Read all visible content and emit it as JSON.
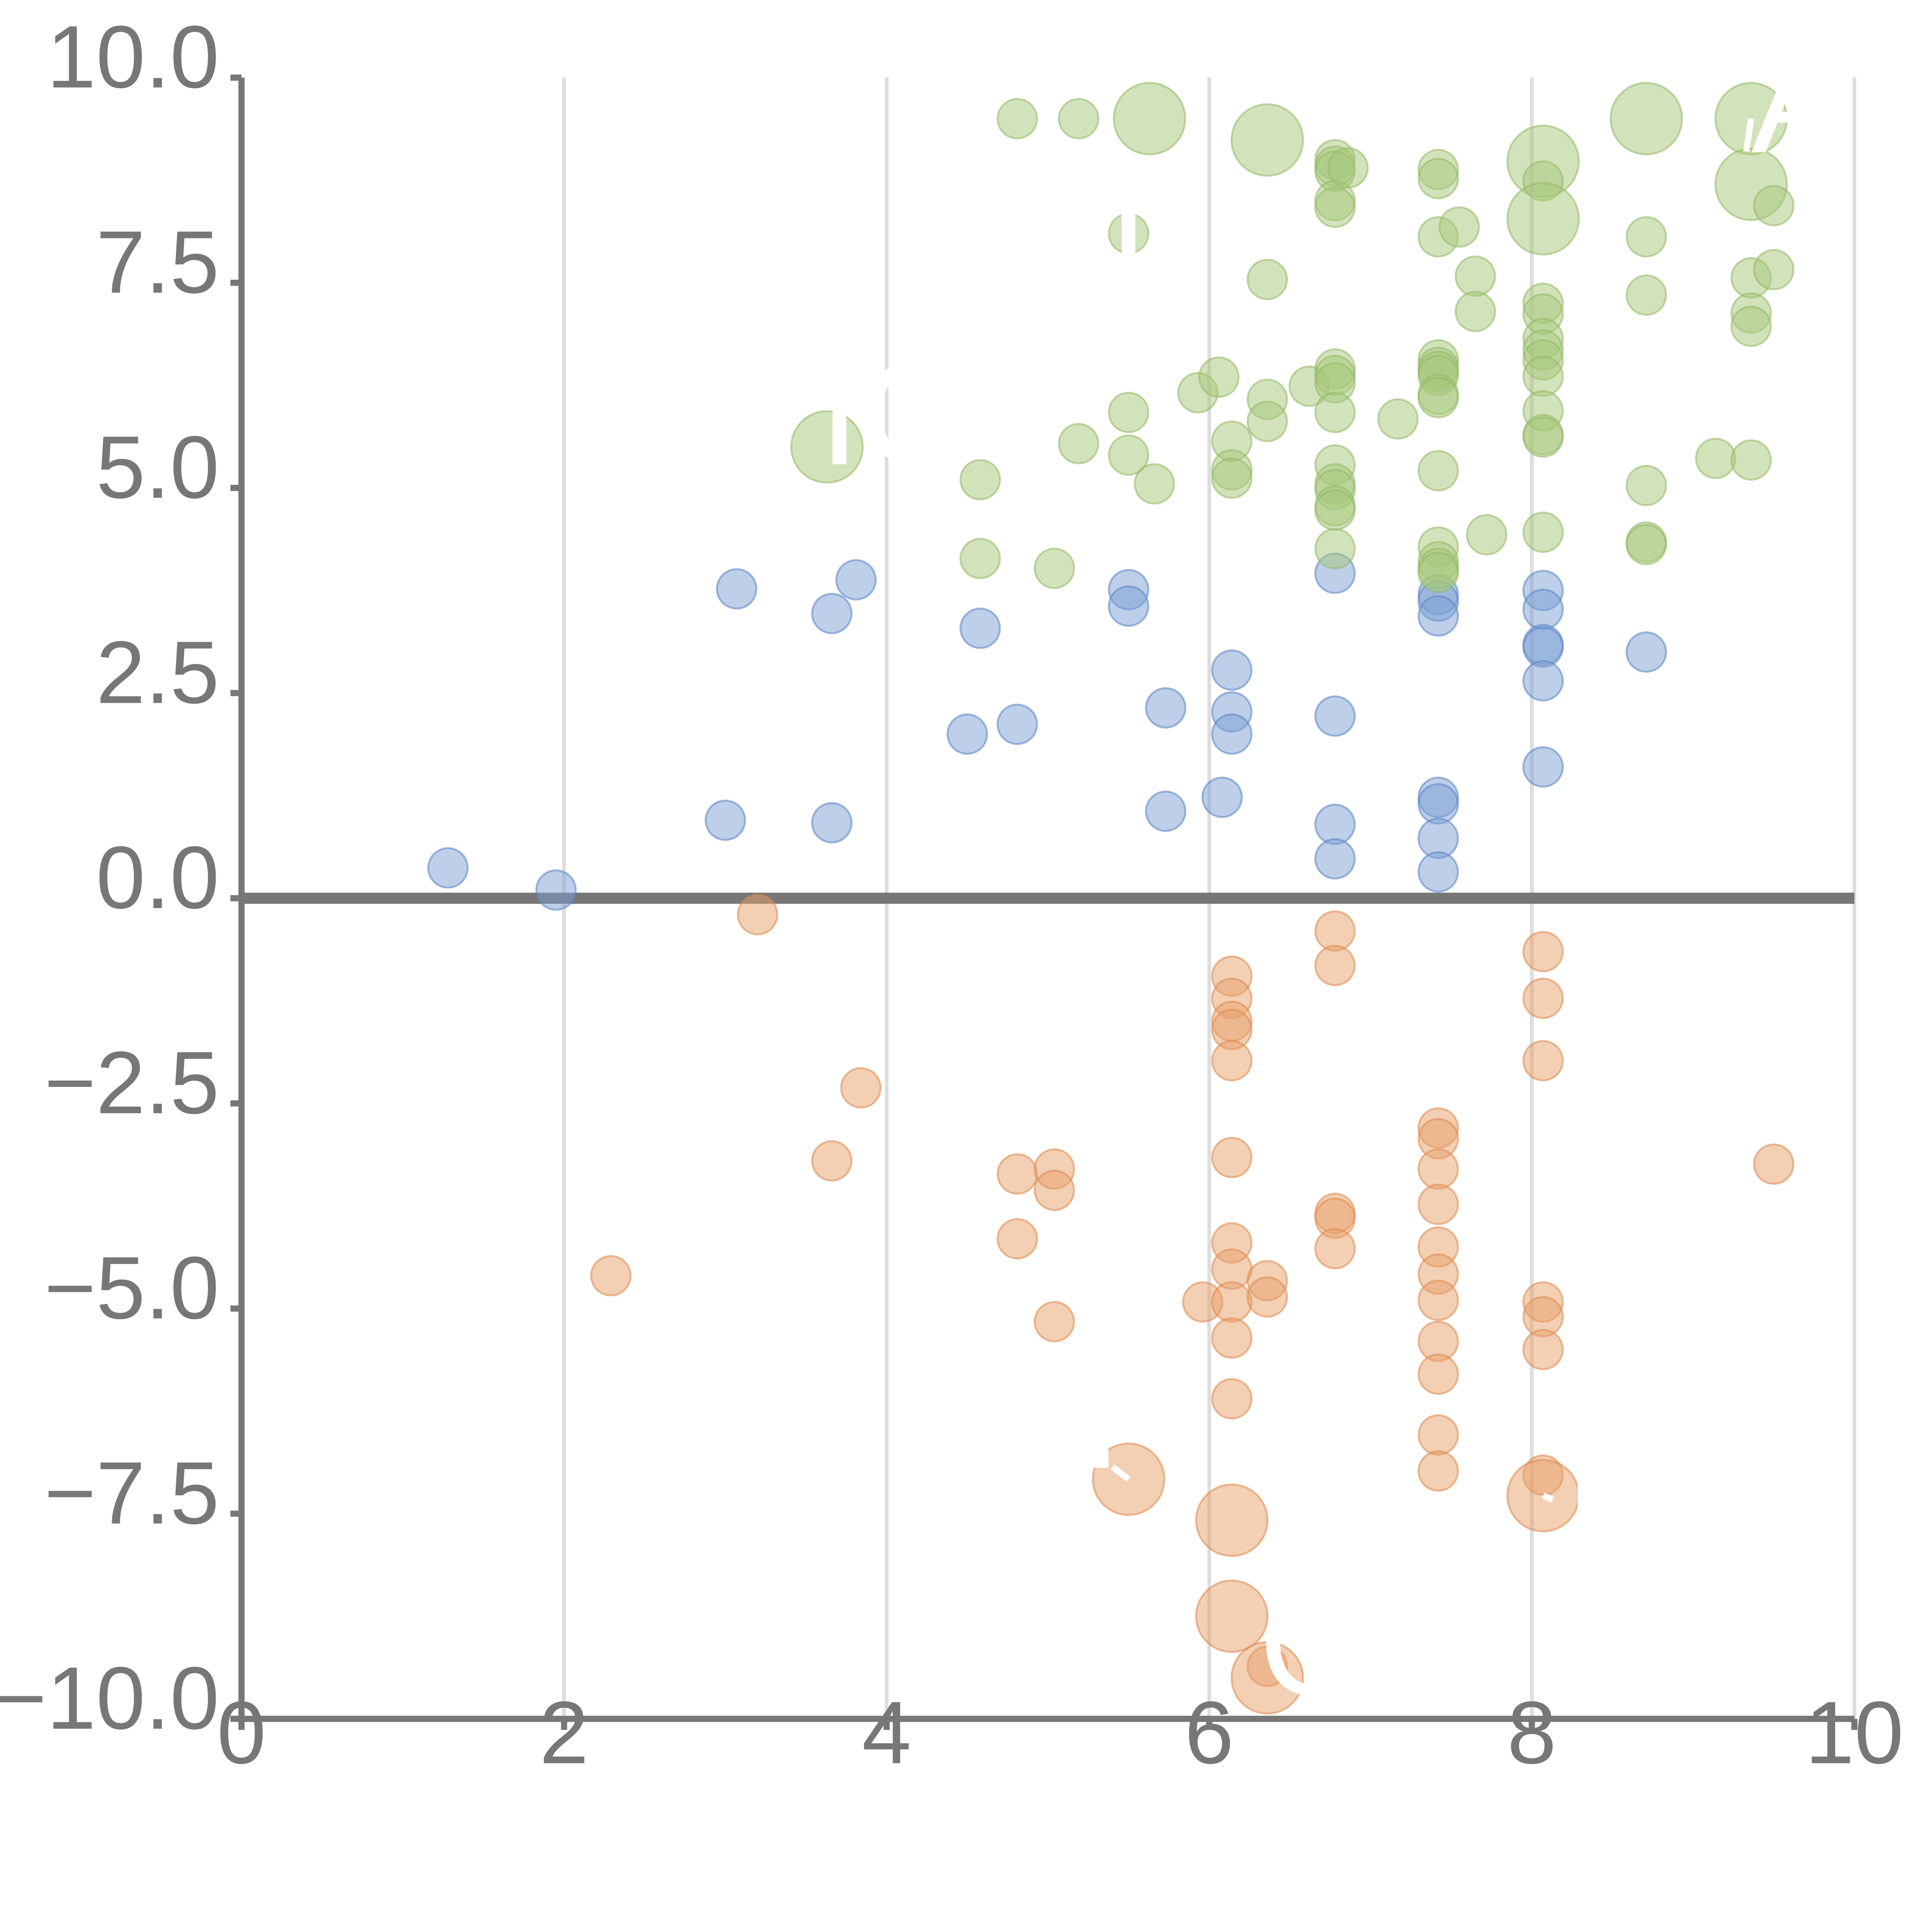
{
  "chart_data": {
    "type": "scatter",
    "title": "",
    "xlabel": "",
    "ylabel": "",
    "xlim": [
      0,
      10
    ],
    "ylim": [
      -10,
      10
    ],
    "x_ticks": [
      0,
      2,
      4,
      6,
      8,
      10
    ],
    "y_ticks": [
      -10,
      -7.5,
      -5,
      -2.5,
      0,
      2.5,
      5,
      7.5,
      10
    ],
    "x_tick_labels": [
      "0",
      "2",
      "4",
      "6",
      "8",
      "10"
    ],
    "y_tick_labels": [
      "−10.0",
      "−7.5",
      "−5.0",
      "−2.5",
      "0.0",
      "2.5",
      "5.0",
      "7.5",
      "10.0"
    ],
    "vertical_grid": true,
    "zero_line": 0,
    "colors": {
      "blue_fill": "#7b9fd3",
      "blue_stroke": "#5b84c4",
      "green_fill": "#a6c77a",
      "green_stroke": "#93b866",
      "orange_fill": "#e8a06a",
      "orange_stroke": "#dc8a4e"
    },
    "series": [
      {
        "name": "blue",
        "color": "#7b9fd3",
        "points": [
          [
            1.28,
            0.37,
            1
          ],
          [
            1.95,
            0.1,
            1
          ],
          [
            3.0,
            0.95,
            1
          ],
          [
            3.07,
            3.77,
            1
          ],
          [
            3.66,
            0.92,
            1
          ],
          [
            3.66,
            3.47,
            1
          ],
          [
            3.81,
            3.88,
            1
          ],
          [
            4.5,
            2.0,
            1
          ],
          [
            4.58,
            3.29,
            1
          ],
          [
            4.81,
            2.12,
            1
          ],
          [
            5.5,
            3.76,
            1
          ],
          [
            5.5,
            3.56,
            1
          ],
          [
            5.73,
            2.32,
            1
          ],
          [
            5.73,
            1.06,
            1
          ],
          [
            6.08,
            1.23,
            1
          ],
          [
            6.14,
            2.78,
            1
          ],
          [
            6.14,
            2.27,
            1
          ],
          [
            6.14,
            2.0,
            1
          ],
          [
            6.78,
            3.96,
            1
          ],
          [
            6.78,
            2.22,
            1
          ],
          [
            6.78,
            0.9,
            1
          ],
          [
            6.78,
            0.48,
            1
          ],
          [
            7.42,
            3.7,
            1
          ],
          [
            7.42,
            3.62,
            1
          ],
          [
            7.42,
            3.44,
            1
          ],
          [
            7.42,
            1.23,
            1
          ],
          [
            7.42,
            1.15,
            1
          ],
          [
            7.42,
            0.73,
            1
          ],
          [
            7.42,
            0.32,
            1
          ],
          [
            8.07,
            3.75,
            1
          ],
          [
            8.07,
            3.52,
            1
          ],
          [
            8.07,
            3.09,
            1
          ],
          [
            8.07,
            3.06,
            1
          ],
          [
            8.07,
            2.65,
            1
          ],
          [
            8.07,
            1.6,
            1
          ],
          [
            8.71,
            3.0,
            1
          ]
        ]
      },
      {
        "name": "orange",
        "color": "#e8a06a",
        "points": [
          [
            3.2,
            -0.2,
            1
          ],
          [
            2.29,
            -4.6,
            1
          ],
          [
            3.66,
            -3.2,
            1
          ],
          [
            3.84,
            -2.31,
            1
          ],
          [
            4.81,
            -3.36,
            1
          ],
          [
            4.81,
            -4.15,
            1
          ],
          [
            5.04,
            -3.3,
            1
          ],
          [
            5.04,
            -3.56,
            1
          ],
          [
            5.04,
            -5.16,
            1
          ],
          [
            5.5,
            -7.08,
            3
          ],
          [
            5.96,
            -4.92,
            1
          ],
          [
            6.14,
            -0.95,
            1
          ],
          [
            6.14,
            -1.22,
            1
          ],
          [
            6.14,
            -1.5,
            1
          ],
          [
            6.14,
            -1.6,
            1
          ],
          [
            6.14,
            -1.98,
            1
          ],
          [
            6.14,
            -3.16,
            1
          ],
          [
            6.14,
            -4.2,
            1
          ],
          [
            6.14,
            -4.52,
            1
          ],
          [
            6.14,
            -4.92,
            1
          ],
          [
            6.14,
            -5.36,
            1
          ],
          [
            6.14,
            -6.1,
            1
          ],
          [
            6.14,
            -7.58,
            3
          ],
          [
            6.14,
            -8.75,
            3
          ],
          [
            6.36,
            -4.66,
            1
          ],
          [
            6.36,
            -4.86,
            1
          ],
          [
            6.36,
            -9.36,
            1
          ],
          [
            6.36,
            -9.5,
            3
          ],
          [
            6.78,
            -0.4,
            1
          ],
          [
            6.78,
            -0.82,
            1
          ],
          [
            6.78,
            -3.84,
            1
          ],
          [
            6.78,
            -3.9,
            1
          ],
          [
            6.78,
            -4.27,
            1
          ],
          [
            7.42,
            -2.8,
            1
          ],
          [
            7.42,
            -2.93,
            1
          ],
          [
            7.42,
            -3.3,
            1
          ],
          [
            7.42,
            -3.73,
            1
          ],
          [
            7.42,
            -4.25,
            1
          ],
          [
            7.42,
            -4.58,
            1
          ],
          [
            7.42,
            -4.9,
            1
          ],
          [
            7.42,
            -5.4,
            1
          ],
          [
            7.42,
            -5.8,
            1
          ],
          [
            7.42,
            -6.54,
            1
          ],
          [
            7.42,
            -6.98,
            1
          ],
          [
            8.07,
            -0.65,
            1
          ],
          [
            8.07,
            -1.22,
            1
          ],
          [
            8.07,
            -1.98,
            1
          ],
          [
            8.07,
            -4.92,
            1
          ],
          [
            8.07,
            -5.1,
            1
          ],
          [
            8.07,
            -5.5,
            1
          ],
          [
            8.07,
            -7.03,
            1
          ],
          [
            8.07,
            -7.28,
            3
          ],
          [
            9.5,
            -3.24,
            1
          ]
        ]
      },
      {
        "name": "green",
        "color": "#a6c77a",
        "points": [
          [
            3.63,
            5.5,
            3
          ],
          [
            4.58,
            4.14,
            1
          ],
          [
            4.58,
            5.1,
            1
          ],
          [
            4.81,
            9.5,
            1
          ],
          [
            5.04,
            4.02,
            1
          ],
          [
            5.19,
            9.5,
            1
          ],
          [
            5.19,
            5.54,
            1
          ],
          [
            5.5,
            5.92,
            1
          ],
          [
            5.5,
            5.4,
            1
          ],
          [
            5.5,
            8.1,
            1
          ],
          [
            5.63,
            9.5,
            3
          ],
          [
            5.66,
            5.05,
            1
          ],
          [
            5.93,
            6.16,
            1
          ],
          [
            6.06,
            6.35,
            1
          ],
          [
            6.14,
            5.57,
            1
          ],
          [
            6.14,
            5.22,
            1
          ],
          [
            6.14,
            5.12,
            1
          ],
          [
            6.36,
            9.24,
            3
          ],
          [
            6.36,
            7.54,
            1
          ],
          [
            6.36,
            6.08,
            1
          ],
          [
            6.36,
            5.81,
            1
          ],
          [
            6.62,
            6.24,
            1
          ],
          [
            6.78,
            9.0,
            1
          ],
          [
            6.78,
            8.92,
            1
          ],
          [
            6.78,
            8.86,
            1
          ],
          [
            6.78,
            8.5,
            1
          ],
          [
            6.78,
            8.42,
            1
          ],
          [
            6.78,
            6.45,
            1
          ],
          [
            6.78,
            6.37,
            1
          ],
          [
            6.78,
            6.28,
            1
          ],
          [
            6.78,
            5.92,
            1
          ],
          [
            6.78,
            5.28,
            1
          ],
          [
            6.78,
            5.05,
            1
          ],
          [
            6.78,
            4.98,
            1
          ],
          [
            6.78,
            4.78,
            1
          ],
          [
            6.78,
            4.73,
            1
          ],
          [
            6.78,
            4.26,
            1
          ],
          [
            6.86,
            8.9,
            1
          ],
          [
            7.17,
            5.84,
            1
          ],
          [
            7.42,
            8.88,
            1
          ],
          [
            7.42,
            8.77,
            1
          ],
          [
            7.42,
            8.06,
            1
          ],
          [
            7.42,
            6.56,
            1
          ],
          [
            7.42,
            6.47,
            1
          ],
          [
            7.42,
            6.42,
            1
          ],
          [
            7.42,
            6.37,
            1
          ],
          [
            7.42,
            6.14,
            1
          ],
          [
            7.42,
            6.1,
            1
          ],
          [
            7.42,
            5.21,
            1
          ],
          [
            7.42,
            4.28,
            1
          ],
          [
            7.42,
            4.1,
            1
          ],
          [
            7.42,
            4.02,
            1
          ],
          [
            7.42,
            3.97,
            1
          ],
          [
            7.55,
            8.18,
            1
          ],
          [
            7.65,
            7.58,
            1
          ],
          [
            7.65,
            7.15,
            1
          ],
          [
            7.72,
            4.43,
            1
          ],
          [
            8.07,
            8.98,
            3
          ],
          [
            8.07,
            8.74,
            1
          ],
          [
            8.07,
            8.28,
            3
          ],
          [
            8.07,
            7.25,
            1
          ],
          [
            8.07,
            7.12,
            1
          ],
          [
            8.07,
            6.82,
            1
          ],
          [
            8.07,
            6.68,
            1
          ],
          [
            8.07,
            6.56,
            1
          ],
          [
            8.07,
            6.36,
            1
          ],
          [
            8.07,
            5.94,
            1
          ],
          [
            8.07,
            5.65,
            1
          ],
          [
            8.07,
            5.62,
            1
          ],
          [
            8.07,
            4.46,
            1
          ],
          [
            8.71,
            9.5,
            3
          ],
          [
            8.71,
            8.06,
            1
          ],
          [
            8.71,
            7.35,
            1
          ],
          [
            8.71,
            5.03,
            1
          ],
          [
            8.71,
            4.34,
            1
          ],
          [
            8.71,
            4.31,
            1
          ],
          [
            9.14,
            5.36,
            1
          ],
          [
            9.36,
            9.5,
            3
          ],
          [
            9.36,
            8.7,
            3
          ],
          [
            9.36,
            7.56,
            1
          ],
          [
            9.36,
            7.13,
            1
          ],
          [
            9.36,
            6.97,
            1
          ],
          [
            9.36,
            5.34,
            1
          ],
          [
            9.5,
            8.44,
            1
          ],
          [
            9.5,
            7.66,
            1
          ]
        ]
      }
    ],
    "annotations": [
      {
        "text": "IC",
        "x": 3.63,
        "y": 5.5,
        "anchor": "start",
        "dx": -0.05,
        "dy": 0.0,
        "lx": 0,
        "ly": 0
      },
      {
        "text": "A",
        "x": 9.36,
        "y": 9.5,
        "anchor": "start",
        "dx": 0.0,
        "dy": -0.2,
        "lx": -0.03,
        "ly": -0.4
      },
      {
        "text": "E",
        "x": 8.07,
        "y": -7.28,
        "anchor": "start",
        "dx": 0.14,
        "dy": -0.12,
        "lx": 0.06,
        "ly": -0.05
      },
      {
        "text": "O",
        "x": 6.36,
        "y": -9.5,
        "anchor": "start",
        "dx": -0.05,
        "dy": 0.0,
        "lx": 0,
        "ly": 0
      },
      {
        "text": "T",
        "x": 5.5,
        "y": 8.1,
        "anchor": "middle",
        "dx": 0.0,
        "dy": -0.1,
        "lx": 0,
        "ly": 0
      },
      {
        "text": "N",
        "x": 5.5,
        "y": -7.08,
        "anchor": "end",
        "dx": -0.05,
        "dy": 0.35,
        "lx": -0.1,
        "ly": 0.15
      }
    ]
  }
}
